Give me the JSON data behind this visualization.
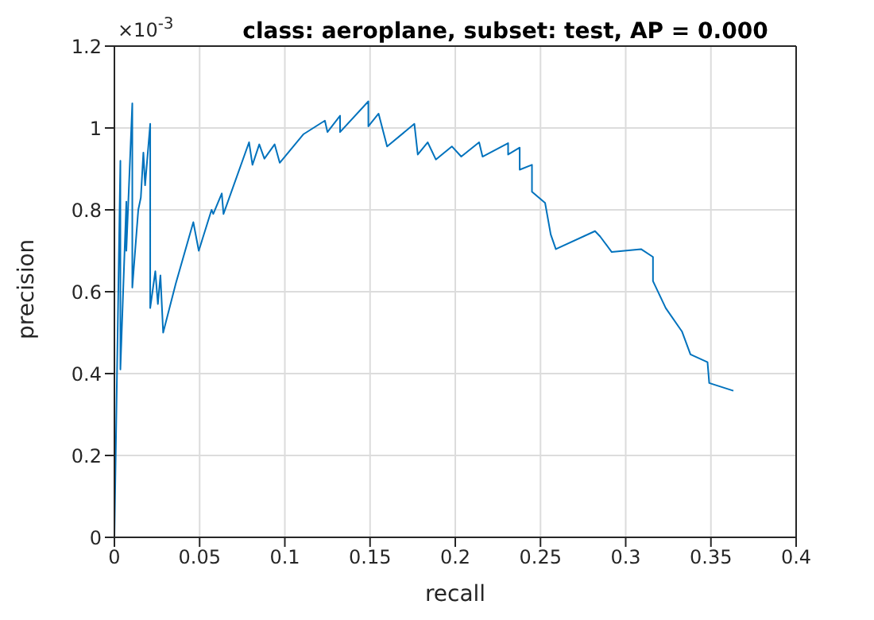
{
  "chart_data": {
    "type": "line",
    "title": "class: aeroplane, subset: test, AP = 0.000",
    "xlabel": "recall",
    "ylabel": "precision",
    "annotations": [
      "×10$^{-3}$"
    ],
    "x": [
      0,
      0.0035,
      0.0035,
      0.007,
      0.007,
      0.0105,
      0.0105,
      0.014,
      0.0155,
      0.017,
      0.018,
      0.021,
      0.021,
      0.024,
      0.0255,
      0.027,
      0.0286,
      0.036,
      0.0463,
      0.0495,
      0.057,
      0.058,
      0.063,
      0.064,
      0.079,
      0.081,
      0.085,
      0.088,
      0.094,
      0.097,
      0.111,
      0.1235,
      0.125,
      0.1324,
      0.1324,
      0.149,
      0.149,
      0.155,
      0.16,
      0.176,
      0.178,
      0.1838,
      0.1886,
      0.198,
      0.2035,
      0.214,
      0.216,
      0.231,
      0.231,
      0.2378,
      0.2378,
      0.245,
      0.245,
      0.2527,
      0.256,
      0.259,
      0.282,
      0.285,
      0.2918,
      0.309,
      0.316,
      0.316,
      0.3235,
      0.333,
      0.338,
      0.348,
      0.349,
      0.3632
    ],
    "series": [
      {
        "color": "#0072bd",
        "values": [
          0,
          0.92,
          0.41,
          0.82,
          0.7,
          1.06,
          0.61,
          0.8,
          0.83,
          0.94,
          0.86,
          1.01,
          0.56,
          0.65,
          0.57,
          0.64,
          0.5,
          0.62,
          0.77,
          0.7,
          0.8,
          0.79,
          0.84,
          0.79,
          0.965,
          0.91,
          0.96,
          0.925,
          0.96,
          0.915,
          0.985,
          1.018,
          0.99,
          1.03,
          0.99,
          1.065,
          1.004,
          1.035,
          0.955,
          1.01,
          0.935,
          0.965,
          0.923,
          0.955,
          0.93,
          0.965,
          0.93,
          0.963,
          0.935,
          0.952,
          0.898,
          0.91,
          0.844,
          0.817,
          0.74,
          0.704,
          0.748,
          0.735,
          0.697,
          0.704,
          0.685,
          0.626,
          0.56,
          0.503,
          0.447,
          0.428,
          0.377,
          0.358
        ]
      }
    ],
    "xlim": [
      0,
      0.4
    ],
    "xticks": [
      0,
      0.05,
      0.1,
      0.15,
      0.2,
      0.25,
      0.3,
      0.35,
      0.4
    ],
    "ylim": [
      0,
      1.2
    ],
    "yticks": [
      0,
      0.2,
      0.4,
      0.6,
      0.8,
      1,
      1.2
    ],
    "grid": true,
    "marker": "none",
    "line_style": "solid"
  }
}
